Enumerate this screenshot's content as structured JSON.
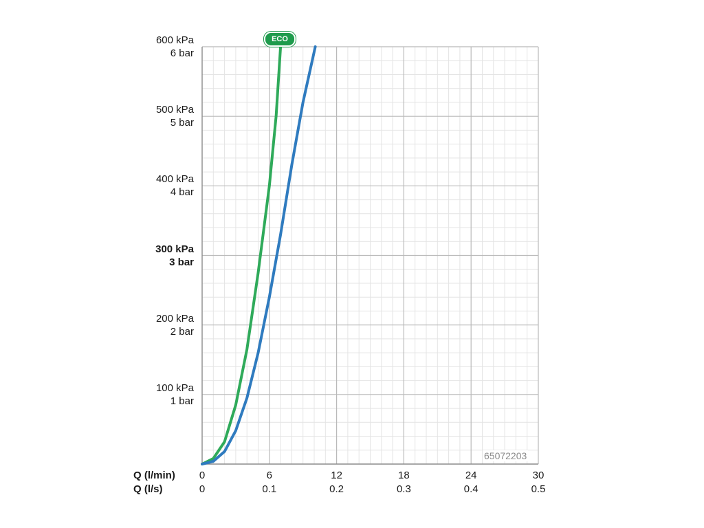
{
  "chart_data": {
    "type": "line",
    "y_ticks": [
      {
        "kpa": "600 kPa",
        "bar": "6 bar",
        "value": 600,
        "bold": false
      },
      {
        "kpa": "500 kPa",
        "bar": "5 bar",
        "value": 500,
        "bold": false
      },
      {
        "kpa": "400 kPa",
        "bar": "4 bar",
        "value": 400,
        "bold": false
      },
      {
        "kpa": "300 kPa",
        "bar": "3 bar",
        "value": 300,
        "bold": true
      },
      {
        "kpa": "200 kPa",
        "bar": "2 bar",
        "value": 200,
        "bold": false
      },
      {
        "kpa": "100 kPa",
        "bar": "1 bar",
        "value": 100,
        "bold": false
      }
    ],
    "x_axis_lmin": {
      "label": "Q (l/min)",
      "ticks": [
        "0",
        "6",
        "12",
        "18",
        "24",
        "30"
      ],
      "range": [
        0,
        30
      ]
    },
    "x_axis_ls": {
      "label": "Q (l/s)",
      "ticks": [
        "0",
        "0.1",
        "0.2",
        "0.3",
        "0.4",
        "0.5"
      ],
      "range": [
        0,
        0.5
      ]
    },
    "y_range": [
      0,
      600
    ],
    "grid": true,
    "series": [
      {
        "name": "ECO",
        "color": "#2faa5a",
        "points": [
          [
            0,
            0
          ],
          [
            1,
            8
          ],
          [
            2,
            32
          ],
          [
            3,
            85
          ],
          [
            4,
            165
          ],
          [
            5,
            275
          ],
          [
            6,
            400
          ],
          [
            6.6,
            500
          ],
          [
            7,
            600
          ]
        ]
      },
      {
        "color": "#2f7bbf",
        "points": [
          [
            0,
            0
          ],
          [
            1,
            4
          ],
          [
            2,
            18
          ],
          [
            3,
            48
          ],
          [
            4,
            95
          ],
          [
            5,
            160
          ],
          [
            6,
            240
          ],
          [
            7,
            330
          ],
          [
            8,
            430
          ],
          [
            9,
            520
          ],
          [
            10.1,
            600
          ]
        ]
      }
    ],
    "badge": {
      "text": "ECO",
      "color": "#1e9b4c"
    },
    "annotation": "65072203"
  }
}
